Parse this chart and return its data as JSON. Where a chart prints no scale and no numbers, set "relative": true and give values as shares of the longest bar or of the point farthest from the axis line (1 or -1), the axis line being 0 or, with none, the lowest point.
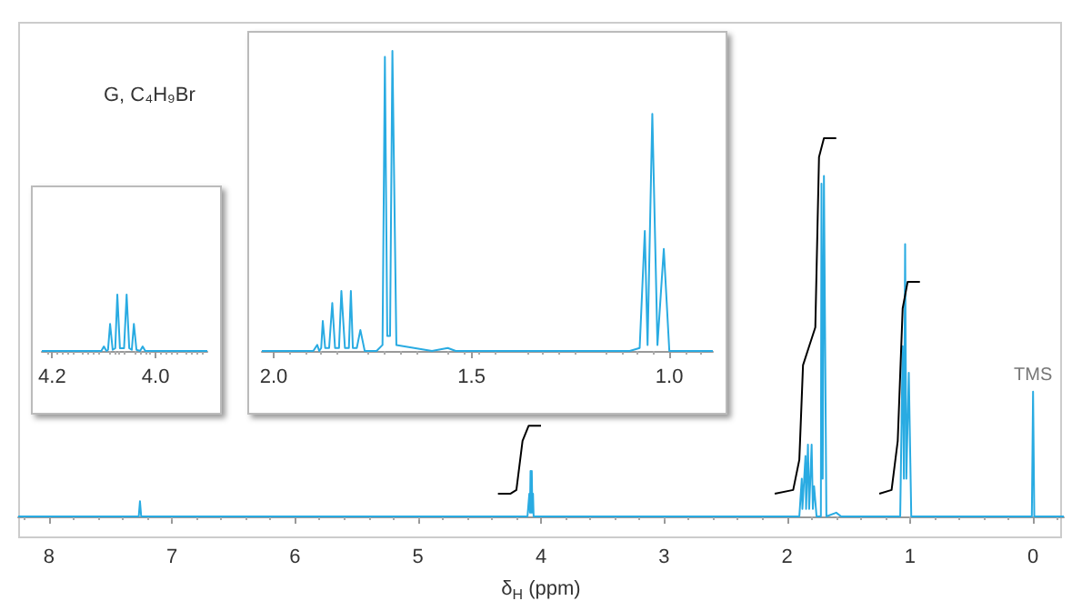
{
  "chart_data": [
    {
      "type": "line",
      "title": "G, C₄H₉Br",
      "xlabel": "δ$_{H}$ (ppm)",
      "relative": true,
      "xlim": [
        8.25,
        -0.25
      ],
      "xticks": [
        8,
        7,
        6,
        5,
        4,
        3,
        2,
        1,
        0
      ],
      "marker": "none",
      "annotations": [
        {
          "text": "TMS",
          "x": 0,
          "y": 0.33
        }
      ],
      "series": [
        {
          "color": "#29abe2",
          "x": [
            8.25,
            7.27,
            7.26,
            7.25,
            4.11,
            4.095,
            4.09,
            4.085,
            4.08,
            4.075,
            4.07,
            4.065,
            4.06,
            4.05,
            1.9,
            1.88,
            1.875,
            1.85,
            1.845,
            1.83,
            1.82,
            1.8,
            1.79,
            1.78,
            1.76,
            1.725,
            1.72,
            1.71,
            1.7,
            1.68,
            1.6,
            1.56,
            1.54,
            1.08,
            1.06,
            1.05,
            1.04,
            1.03,
            1.01,
            0.99,
            0.01,
            0,
            -0.01,
            -0.25
          ],
          "values": [
            0,
            0,
            0.04,
            0,
            0,
            0.06,
            0.01,
            0.12,
            0.01,
            0.12,
            0.01,
            0.06,
            0,
            0,
            0,
            0.1,
            0.02,
            0.16,
            0.02,
            0.19,
            0.02,
            0.19,
            0.02,
            0.08,
            0,
            0,
            0.88,
            0.1,
            0.9,
            0,
            0.01,
            0,
            0,
            0,
            0.45,
            0.1,
            0.72,
            0.1,
            0.38,
            0,
            0,
            0.33,
            0,
            0
          ]
        },
        {
          "color": "#000000",
          "x": [
            4.35,
            4.25,
            4.2,
            4.15,
            4.1,
            4.0
          ],
          "values": [
            0.06,
            0.06,
            0.07,
            0.2,
            0.24,
            0.24
          ]
        },
        {
          "color": "#000000",
          "x": [
            2.1,
            1.95,
            1.9,
            1.87,
            1.82,
            1.77,
            1.74,
            1.7,
            1.6
          ],
          "values": [
            0.06,
            0.07,
            0.15,
            0.4,
            0.45,
            0.5,
            0.95,
            1.0,
            1.0
          ]
        },
        {
          "color": "#000000",
          "x": [
            1.25,
            1.15,
            1.1,
            1.06,
            1.02,
            0.92
          ],
          "values": [
            0.06,
            0.07,
            0.2,
            0.55,
            0.62,
            0.62
          ]
        }
      ]
    },
    {
      "type": "line",
      "relative": true,
      "xlim": [
        4.22,
        3.9
      ],
      "xticks": [
        4.2,
        {
          "value": 4,
          "label": "4.0"
        }
      ],
      "marker": "none",
      "series": [
        {
          "color": "#29abe2",
          "x": [
            4.22,
            4.105,
            4.1,
            4.095,
            4.092,
            4.088,
            4.083,
            4.078,
            4.074,
            4.069,
            4.061,
            4.056,
            4.051,
            4.046,
            4.042,
            4.037,
            4.03,
            4.025,
            4.02,
            3.9
          ],
          "values": [
            0,
            0,
            0.08,
            0,
            0.02,
            0.48,
            0.02,
            0.05,
            1,
            0.05,
            0.05,
            1,
            0.05,
            0.02,
            0.48,
            0.02,
            0,
            0.08,
            0,
            0
          ]
        }
      ]
    },
    {
      "type": "line",
      "relative": true,
      "xlim": [
        2.03,
        0.89
      ],
      "xticks": [
        {
          "value": 2,
          "label": "2.0"
        },
        1.5,
        {
          "value": 1,
          "label": "1.0"
        }
      ],
      "marker": "none",
      "series": [
        {
          "color": "#29abe2",
          "x": [
            2.03,
            1.9,
            1.89,
            1.885,
            1.88,
            1.876,
            1.87,
            1.86,
            1.852,
            1.845,
            1.835,
            1.829,
            1.82,
            1.81,
            1.805,
            1.8,
            1.79,
            1.781,
            1.77,
            1.74,
            1.725,
            1.719,
            1.713,
            1.706,
            1.7,
            1.69,
            1.6,
            1.56,
            1.54,
            1.1,
            1.075,
            1.062,
            1.055,
            1.043,
            1.03,
            1.014,
            1.0,
            0.89
          ],
          "values": [
            0,
            0,
            0.02,
            0,
            0.01,
            0.1,
            0.01,
            0.01,
            0.16,
            0.01,
            0.01,
            0.2,
            0.01,
            0.01,
            0.2,
            0.01,
            0.01,
            0.07,
            0,
            0,
            0.02,
            0.98,
            0.05,
            0.05,
            1,
            0.02,
            0,
            0.01,
            0,
            0,
            0.01,
            0.4,
            0.02,
            0.79,
            0.02,
            0.34,
            0,
            0
          ]
        }
      ]
    }
  ]
}
